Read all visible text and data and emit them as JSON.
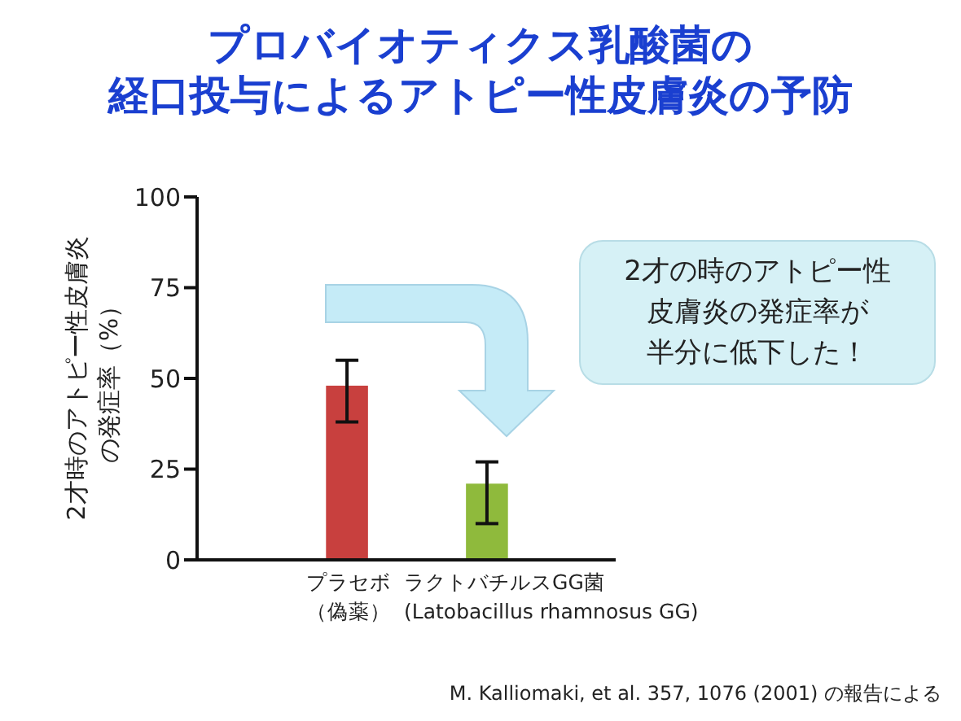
{
  "chart_data": {
    "type": "bar",
    "title": "プロバイオティクス乳酸菌の経口投与によるアトピー性皮膚炎の予防",
    "ylabel": "2才時のアトピー性皮膚炎の発症率（%）",
    "categories": [
      "プラセボ（偽薬）",
      "ラクトバチルスGG菌(Latobacillus rhamnosus GG)"
    ],
    "values": [
      48,
      21
    ],
    "colors": [
      "#c8403e",
      "#8fba3c"
    ],
    "errors": [
      [
        38,
        55
      ],
      [
        10,
        27
      ]
    ],
    "ylim": [
      0,
      100
    ],
    "yticks": [
      0,
      25,
      50,
      75,
      100
    ],
    "grid": false,
    "annotations": [
      "2才の時のアトピー性皮膚炎の発症率が半分に低下した！",
      "M. Kalliomaki, et al. 357, 1076 (2001) の報告による"
    ]
  }
}
